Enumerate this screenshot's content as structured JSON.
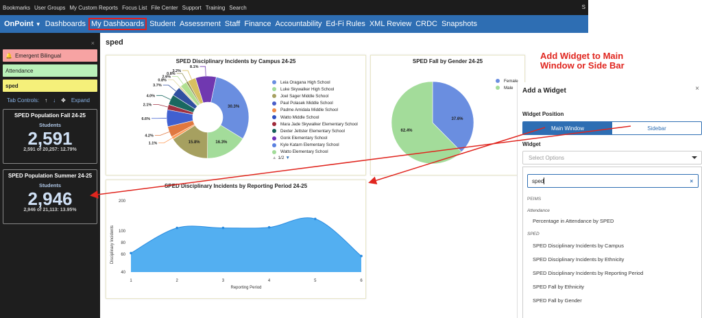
{
  "topbar": {
    "items": [
      "Bookmarks",
      "User Groups",
      "My Custom Reports",
      "Focus List",
      "File Center",
      "Support",
      "Training",
      "Search"
    ],
    "right": "S"
  },
  "navbar": {
    "brand": "OnPoint",
    "items": [
      "Dashboards",
      "My Dashboards",
      "Student",
      "Assessment",
      "Staff",
      "Finance",
      "Accountability",
      "Ed-Fi Rules",
      "XML Review",
      "CRDC",
      "Snapshots"
    ],
    "active": "My Dashboards"
  },
  "sidebar": {
    "close": "×",
    "pills": [
      "Emergent Bilingual",
      "Attendance",
      "sped"
    ],
    "tab_controls": {
      "label": "Tab Controls:",
      "up": "↑",
      "down": "↓",
      "expand_icon": "✥",
      "expand": "Expand"
    },
    "stats": [
      {
        "title": "SPED Population Fall 24-25",
        "subtitle": "Students",
        "value": "2,591",
        "detail": "2,591 of 20,257: 12.79%"
      },
      {
        "title": "SPED Population Summer 24-25",
        "subtitle": "Students",
        "value": "2,946",
        "detail": "2,946 of 21,113: 13.95%"
      }
    ]
  },
  "main": {
    "title": "sped",
    "annotation": [
      "Add Widget to Main",
      "Window or Side Bar"
    ]
  },
  "chart_data": [
    {
      "type": "pie",
      "title": "SPED Disciplinary Incidents by Campus 24-25",
      "categories": [
        "Leia Oragana High School",
        "Luke Skywalker High School",
        "Joel Sager Middle School",
        "Paul Polasek Middle School",
        "Padme Amidala Middle School",
        "Watto Middle School",
        "Mara Jade Skywalker Elementary School",
        "Dexter Jettster Elementary School",
        "Gonk Elementary School",
        "Kyle Katarn Elementary School",
        "Watto Elementary School"
      ],
      "values": [
        30.3,
        16.3,
        15.8,
        1.1,
        4.2,
        6.6,
        2.1,
        4.0,
        3.7,
        0.8,
        2.6,
        0.8,
        3.2,
        8.1
      ],
      "labels": [
        "30.3%",
        "16.3%",
        "15.8%",
        "1.1%",
        "4.2%",
        "6.6%",
        "2.1%",
        "4.0%",
        "3.7%",
        "0.8%",
        "2.6%",
        "0.8%",
        "3.2%",
        "8.1%"
      ],
      "colors": [
        "#6a8ee0",
        "#a3dc9a",
        "#a6a060",
        "#ff9c58",
        "#e07840",
        "#4060d0",
        "#a03040",
        "#1a6860",
        "#3050a0",
        "#e0d8a0",
        "#b0e090",
        "#909050",
        "#d8c060",
        "#7038b0"
      ],
      "legend_colors": [
        "#6a8ee0",
        "#a3dc9a",
        "#a6a060",
        "#4a5ec8",
        "#f08a48",
        "#3050c0",
        "#a02a3a",
        "#156058",
        "#7030b8",
        "#5a80e0",
        "#a3dc9a"
      ],
      "legend_page": "1/2",
      "legend_position": "right"
    },
    {
      "type": "pie",
      "title": "SPED Fall by Gender 24-25",
      "categories": [
        "Female",
        "Male"
      ],
      "values": [
        37.6,
        62.4
      ],
      "labels": [
        "37.6%",
        "62.4%"
      ],
      "colors": [
        "#6a8ee0",
        "#a3dc9a"
      ],
      "legend_position": "top-right"
    },
    {
      "type": "area",
      "title": "SPED Disciplinary Incidents by Reporting Period 24-25",
      "x": [
        1,
        2,
        3,
        4,
        5,
        6
      ],
      "values": [
        62,
        110,
        110,
        112,
        140,
        58
      ],
      "xlabel": "Reporting Period",
      "ylabel": "Disciplinary Incidents",
      "ylim": [
        40,
        220
      ],
      "yticks": [
        40,
        60,
        80,
        100,
        200
      ],
      "color": "#4aabf0"
    }
  ],
  "widget": {
    "title": "Add a Widget",
    "close": "×",
    "position_label": "Widget Position",
    "positions": [
      "Main Window",
      "Sidebar"
    ],
    "selected_position": "Main Window",
    "widget_label": "Widget",
    "select_placeholder": "Select Options",
    "search_value": "sped",
    "clear": "×",
    "group": "PEIMS",
    "subgroups": [
      {
        "name": "Attendance",
        "items": [
          "Percentage in Attendance by SPED"
        ]
      },
      {
        "name": "SPED",
        "items": [
          "SPED Disciplinary Incidents by Campus",
          "SPED Disciplinary Incidents by Ethnicity",
          "SPED Disciplinary Incidents by Reporting Period",
          "SPED Fall by Ethnicity",
          "SPED Fall by Gender"
        ]
      }
    ]
  }
}
